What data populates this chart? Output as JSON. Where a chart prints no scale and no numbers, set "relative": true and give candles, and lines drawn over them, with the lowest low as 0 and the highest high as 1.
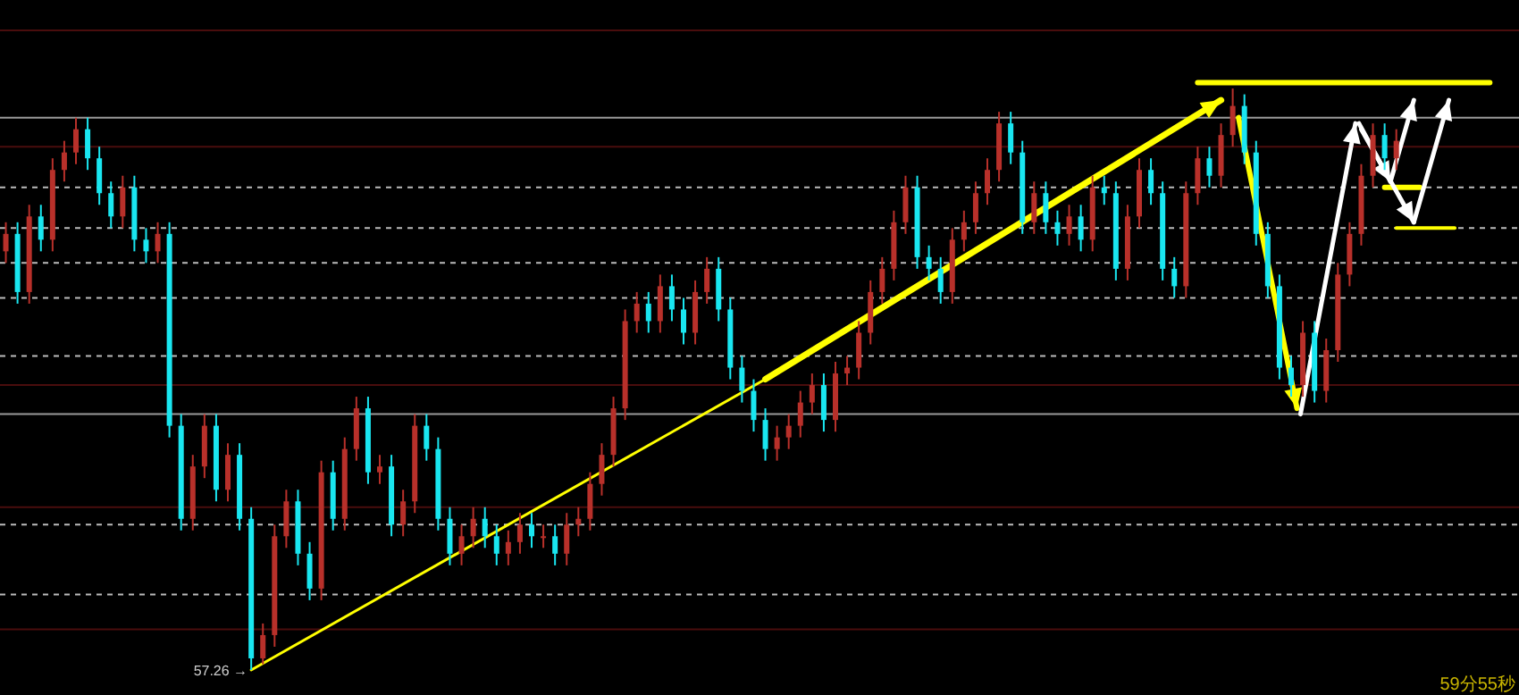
{
  "chart_data": {
    "type": "candlestick",
    "relative": true,
    "categories": [
      null,
      null,
      null,
      null,
      null,
      null,
      null,
      null,
      null,
      null,
      null,
      null,
      null,
      null,
      null,
      null,
      null,
      null,
      null,
      null,
      null,
      null,
      null,
      null,
      null,
      null,
      null,
      null,
      null,
      null,
      null,
      null,
      null,
      null,
      null,
      null,
      null,
      null,
      null,
      null,
      null,
      null,
      null,
      null,
      null,
      null,
      null,
      null,
      null,
      null,
      null,
      null,
      null,
      null,
      null,
      null,
      null,
      null,
      null,
      null,
      null,
      null,
      null,
      null,
      null,
      null,
      null,
      null,
      null,
      null,
      null,
      null,
      null,
      null,
      null,
      null,
      null,
      null,
      null,
      null,
      null,
      null,
      null,
      null,
      null,
      null,
      null,
      null,
      null,
      null,
      null,
      null,
      null,
      null,
      null,
      null,
      null,
      null,
      null,
      null,
      null,
      null,
      null,
      null,
      null,
      null,
      null,
      null,
      null,
      null,
      null,
      null,
      null,
      null,
      null,
      null,
      null,
      null,
      null,
      null
    ],
    "colors": [
      "#b8302a",
      "#19e6f0",
      "#b8302a",
      "#19e6f0",
      "#b8302a",
      "#b8302a",
      "#b8302a",
      "#19e6f0",
      "#19e6f0",
      "#19e6f0",
      "#b8302a",
      "#19e6f0",
      "#19e6f0",
      "#b8302a",
      "#19e6f0",
      "#19e6f0",
      "#b8302a",
      "#b8302a",
      "#19e6f0",
      "#b8302a",
      "#19e6f0",
      "#19e6f0",
      "#b8302a",
      "#b8302a",
      "#b8302a",
      "#19e6f0",
      "#19e6f0",
      "#b8302a",
      "#19e6f0",
      "#b8302a",
      "#b8302a",
      "#19e6f0",
      "#b8302a",
      "#19e6f0",
      "#b8302a",
      "#b8302a",
      "#19e6f0",
      "#19e6f0",
      "#19e6f0",
      "#b8302a",
      "#b8302a",
      "#19e6f0",
      "#19e6f0",
      "#b8302a",
      "#b8302a",
      "#19e6f0",
      "#b8302a",
      "#19e6f0",
      "#b8302a",
      "#b8302a",
      "#b8302a",
      "#b8302a",
      "#b8302a",
      "#b8302a",
      "#b8302a",
      "#19e6f0",
      "#b8302a",
      "#19e6f0",
      "#19e6f0",
      "#b8302a",
      "#b8302a",
      "#19e6f0",
      "#19e6f0",
      "#19e6f0",
      "#19e6f0",
      "#19e6f0",
      "#b8302a",
      "#b8302a",
      "#b8302a",
      "#b8302a",
      "#19e6f0",
      "#b8302a",
      "#b8302a",
      "#b8302a",
      "#b8302a",
      "#b8302a",
      "#b8302a",
      "#b8302a",
      "#19e6f0",
      "#19e6f0",
      "#19e6f0",
      "#b8302a",
      "#b8302a",
      "#b8302a",
      "#b8302a",
      "#b8302a",
      "#19e6f0",
      "#19e6f0",
      "#b8302a",
      "#19e6f0",
      "#19e6f0",
      "#b8302a",
      "#19e6f0",
      "#b8302a",
      "#19e6f0",
      "#19e6f0",
      "#b8302a",
      "#b8302a",
      "#19e6f0",
      "#19e6f0",
      "#19e6f0",
      "#b8302a",
      "#b8302a",
      "#19e6f0",
      "#b8302a",
      "#b8302a",
      "#19e6f0",
      "#19e6f0",
      "#19e6f0",
      "#19e6f0",
      "#19e6f0",
      "#b8302a",
      "#19e6f0",
      "#b8302a",
      "#b8302a",
      "#b8302a",
      "#b8302a",
      "#b8302a",
      "#19e6f0",
      "#b8302a"
    ],
    "ohlc": [
      [
        0.72,
        0.77,
        0.7,
        0.75
      ],
      [
        0.75,
        0.77,
        0.63,
        0.65
      ],
      [
        0.65,
        0.8,
        0.63,
        0.78
      ],
      [
        0.78,
        0.8,
        0.72,
        0.74
      ],
      [
        0.74,
        0.88,
        0.72,
        0.86
      ],
      [
        0.86,
        0.91,
        0.84,
        0.89
      ],
      [
        0.89,
        0.95,
        0.87,
        0.93
      ],
      [
        0.93,
        0.95,
        0.86,
        0.88
      ],
      [
        0.88,
        0.9,
        0.8,
        0.82
      ],
      [
        0.82,
        0.84,
        0.76,
        0.78
      ],
      [
        0.78,
        0.85,
        0.76,
        0.83
      ],
      [
        0.83,
        0.85,
        0.72,
        0.74
      ],
      [
        0.74,
        0.76,
        0.7,
        0.72
      ],
      [
        0.72,
        0.77,
        0.7,
        0.75
      ],
      [
        0.75,
        0.77,
        0.4,
        0.42
      ],
      [
        0.42,
        0.44,
        0.24,
        0.26
      ],
      [
        0.26,
        0.37,
        0.24,
        0.35
      ],
      [
        0.35,
        0.44,
        0.33,
        0.42
      ],
      [
        0.42,
        0.44,
        0.29,
        0.31
      ],
      [
        0.31,
        0.39,
        0.29,
        0.37
      ],
      [
        0.37,
        0.39,
        0.24,
        0.26
      ],
      [
        0.26,
        0.28,
        0.0,
        0.02
      ],
      [
        0.02,
        0.08,
        0.01,
        0.06
      ],
      [
        0.06,
        0.25,
        0.04,
        0.23
      ],
      [
        0.23,
        0.31,
        0.21,
        0.29
      ],
      [
        0.29,
        0.31,
        0.18,
        0.2
      ],
      [
        0.2,
        0.22,
        0.12,
        0.14
      ],
      [
        0.14,
        0.36,
        0.12,
        0.34
      ],
      [
        0.34,
        0.36,
        0.24,
        0.26
      ],
      [
        0.26,
        0.4,
        0.24,
        0.38
      ],
      [
        0.38,
        0.47,
        0.36,
        0.45
      ],
      [
        0.45,
        0.47,
        0.32,
        0.34
      ],
      [
        0.34,
        0.37,
        0.32,
        0.35
      ],
      [
        0.35,
        0.37,
        0.23,
        0.25
      ],
      [
        0.25,
        0.31,
        0.23,
        0.29
      ],
      [
        0.29,
        0.44,
        0.27,
        0.42
      ],
      [
        0.42,
        0.44,
        0.36,
        0.38
      ],
      [
        0.38,
        0.4,
        0.24,
        0.26
      ],
      [
        0.26,
        0.28,
        0.18,
        0.2
      ],
      [
        0.2,
        0.25,
        0.18,
        0.23
      ],
      [
        0.23,
        0.28,
        0.21,
        0.26
      ],
      [
        0.26,
        0.28,
        0.21,
        0.23
      ],
      [
        0.23,
        0.25,
        0.18,
        0.2
      ],
      [
        0.2,
        0.24,
        0.18,
        0.22
      ],
      [
        0.22,
        0.27,
        0.2,
        0.25
      ],
      [
        0.25,
        0.27,
        0.21,
        0.23
      ],
      [
        0.23,
        0.25,
        0.21,
        0.23
      ],
      [
        0.23,
        0.25,
        0.18,
        0.2
      ],
      [
        0.2,
        0.27,
        0.18,
        0.25
      ],
      [
        0.25,
        0.28,
        0.23,
        0.26
      ],
      [
        0.26,
        0.34,
        0.24,
        0.32
      ],
      [
        0.32,
        0.39,
        0.3,
        0.37
      ],
      [
        0.37,
        0.47,
        0.35,
        0.45
      ],
      [
        0.45,
        0.62,
        0.43,
        0.6
      ],
      [
        0.6,
        0.65,
        0.58,
        0.63
      ],
      [
        0.63,
        0.65,
        0.58,
        0.6
      ],
      [
        0.6,
        0.68,
        0.58,
        0.66
      ],
      [
        0.66,
        0.68,
        0.6,
        0.62
      ],
      [
        0.62,
        0.64,
        0.56,
        0.58
      ],
      [
        0.58,
        0.67,
        0.56,
        0.65
      ],
      [
        0.65,
        0.71,
        0.63,
        0.69
      ],
      [
        0.69,
        0.71,
        0.6,
        0.62
      ],
      [
        0.62,
        0.64,
        0.5,
        0.52
      ],
      [
        0.52,
        0.54,
        0.46,
        0.48
      ],
      [
        0.48,
        0.5,
        0.41,
        0.43
      ],
      [
        0.43,
        0.45,
        0.36,
        0.38
      ],
      [
        0.38,
        0.42,
        0.36,
        0.4
      ],
      [
        0.4,
        0.44,
        0.38,
        0.42
      ],
      [
        0.42,
        0.48,
        0.4,
        0.46
      ],
      [
        0.46,
        0.51,
        0.44,
        0.49
      ],
      [
        0.49,
        0.51,
        0.41,
        0.43
      ],
      [
        0.43,
        0.53,
        0.41,
        0.51
      ],
      [
        0.51,
        0.54,
        0.49,
        0.52
      ],
      [
        0.52,
        0.6,
        0.5,
        0.58
      ],
      [
        0.58,
        0.67,
        0.56,
        0.65
      ],
      [
        0.65,
        0.71,
        0.63,
        0.69
      ],
      [
        0.69,
        0.79,
        0.67,
        0.77
      ],
      [
        0.77,
        0.85,
        0.75,
        0.83
      ],
      [
        0.83,
        0.85,
        0.69,
        0.71
      ],
      [
        0.71,
        0.73,
        0.67,
        0.69
      ],
      [
        0.69,
        0.71,
        0.63,
        0.65
      ],
      [
        0.65,
        0.76,
        0.63,
        0.74
      ],
      [
        0.74,
        0.79,
        0.72,
        0.77
      ],
      [
        0.77,
        0.84,
        0.75,
        0.82
      ],
      [
        0.82,
        0.88,
        0.8,
        0.86
      ],
      [
        0.86,
        0.96,
        0.84,
        0.94
      ],
      [
        0.94,
        0.96,
        0.87,
        0.89
      ],
      [
        0.89,
        0.91,
        0.75,
        0.77
      ],
      [
        0.77,
        0.84,
        0.75,
        0.82
      ],
      [
        0.82,
        0.84,
        0.75,
        0.77
      ],
      [
        0.77,
        0.79,
        0.73,
        0.75
      ],
      [
        0.75,
        0.8,
        0.73,
        0.78
      ],
      [
        0.78,
        0.8,
        0.72,
        0.74
      ],
      [
        0.74,
        0.85,
        0.72,
        0.83
      ],
      [
        0.83,
        0.85,
        0.8,
        0.82
      ],
      [
        0.82,
        0.84,
        0.67,
        0.69
      ],
      [
        0.69,
        0.8,
        0.67,
        0.78
      ],
      [
        0.78,
        0.88,
        0.76,
        0.86
      ],
      [
        0.86,
        0.88,
        0.8,
        0.82
      ],
      [
        0.82,
        0.84,
        0.67,
        0.69
      ],
      [
        0.69,
        0.71,
        0.64,
        0.66
      ],
      [
        0.66,
        0.84,
        0.64,
        0.82
      ],
      [
        0.82,
        0.9,
        0.8,
        0.88
      ],
      [
        0.88,
        0.9,
        0.83,
        0.85
      ],
      [
        0.85,
        0.94,
        0.83,
        0.92
      ],
      [
        0.92,
        1.0,
        0.9,
        0.97
      ],
      [
        0.97,
        0.99,
        0.87,
        0.89
      ],
      [
        0.89,
        0.91,
        0.73,
        0.75
      ],
      [
        0.75,
        0.77,
        0.64,
        0.66
      ],
      [
        0.66,
        0.68,
        0.5,
        0.52
      ],
      [
        0.52,
        0.54,
        0.47,
        0.49
      ],
      [
        0.49,
        0.6,
        0.47,
        0.58
      ],
      [
        0.58,
        0.6,
        0.46,
        0.48
      ],
      [
        0.48,
        0.57,
        0.46,
        0.55
      ],
      [
        0.55,
        0.7,
        0.53,
        0.68
      ],
      [
        0.68,
        0.77,
        0.66,
        0.75
      ],
      [
        0.75,
        0.87,
        0.73,
        0.85
      ],
      [
        0.85,
        0.94,
        0.83,
        0.92
      ],
      [
        0.92,
        0.94,
        0.86,
        0.88
      ],
      [
        0.88,
        0.93,
        0.86,
        0.91
      ]
    ],
    "ref_lines": [
      {
        "axis": "y",
        "value": 1.1,
        "color": "#4a0d0d",
        "line_style": "solid"
      },
      {
        "axis": "y",
        "value": 0.95,
        "color": "#9a9a9a",
        "line_style": "solid"
      },
      {
        "axis": "y",
        "value": 0.9,
        "color": "#4a0d0d",
        "line_style": "solid"
      },
      {
        "axis": "y",
        "value": 0.83,
        "color": "#bbbbbb",
        "line_style": "dashed"
      },
      {
        "axis": "y",
        "value": 0.76,
        "color": "#bbbbbb",
        "line_style": "dashed"
      },
      {
        "axis": "y",
        "value": 0.7,
        "color": "#bbbbbb",
        "line_style": "dashed"
      },
      {
        "axis": "y",
        "value": 0.64,
        "color": "#bbbbbb",
        "line_style": "dashed"
      },
      {
        "axis": "y",
        "value": 0.54,
        "color": "#bbbbbb",
        "line_style": "dashed"
      },
      {
        "axis": "y",
        "value": 0.49,
        "color": "#4a0d0d",
        "line_style": "solid"
      },
      {
        "axis": "y",
        "value": 0.44,
        "color": "#9a9a9a",
        "line_style": "solid"
      },
      {
        "axis": "y",
        "value": 0.28,
        "color": "#4a0d0d",
        "line_style": "solid"
      },
      {
        "axis": "y",
        "value": 0.25,
        "color": "#bbbbbb",
        "line_style": "dashed"
      },
      {
        "axis": "y",
        "value": 0.13,
        "color": "#bbbbbb",
        "line_style": "dashed"
      },
      {
        "axis": "y",
        "value": 0.07,
        "color": "#4a0d0d",
        "line_style": "solid"
      }
    ],
    "annotations": [
      "57.26 →",
      "59分55秒"
    ]
  }
}
